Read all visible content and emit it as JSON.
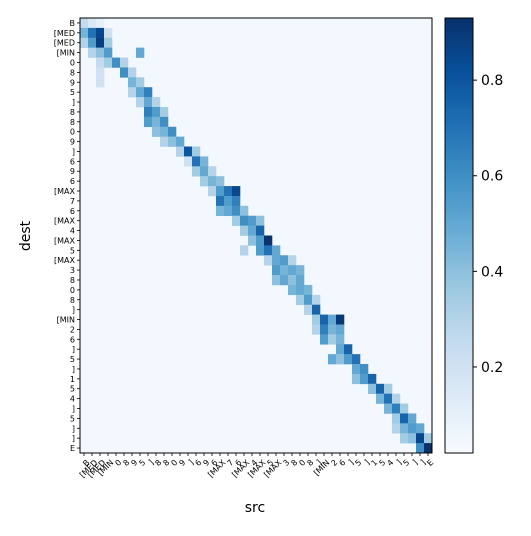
{
  "chart_data": {
    "type": "heatmap",
    "title": "",
    "xlabel": "src",
    "ylabel": "dest",
    "x_tokens": [
      "B",
      "[MED",
      "[MED",
      "[MIN",
      "0",
      "8",
      "9",
      "5",
      "]",
      "8",
      "8",
      "0",
      "9",
      "]",
      "6",
      "9",
      "6",
      "[MAX",
      "7",
      "6",
      "[MAX",
      "4",
      "[MAX",
      "5",
      "[MAX",
      "3",
      "8",
      "0",
      "8",
      "]",
      "[MIN",
      "2",
      "6",
      "]",
      "5",
      "]",
      "1",
      "5",
      "4",
      "]",
      "5",
      "]",
      "]",
      "E"
    ],
    "y_tokens": [
      "B",
      "[MED",
      "[MED",
      "[MIN",
      "0",
      "8",
      "9",
      "5",
      "]",
      "8",
      "8",
      "0",
      "9",
      "]",
      "6",
      "9",
      "6",
      "[MAX",
      "7",
      "6",
      "[MAX",
      "4",
      "[MAX",
      "5",
      "[MAX",
      "3",
      "8",
      "0",
      "8",
      "]",
      "[MIN",
      "2",
      "6",
      "]",
      "5",
      "]",
      "1",
      "5",
      "4",
      "]",
      "5",
      "]",
      "]",
      "E"
    ],
    "colorbar": {
      "colormap": "Blues",
      "range": [
        0.02,
        0.93
      ],
      "ticks": [
        "0.2",
        "0.4",
        "0.6",
        "0.8"
      ],
      "tick_values": [
        0.2,
        0.4,
        0.6,
        0.8
      ]
    },
    "cells": [
      [
        0,
        0,
        0.25
      ],
      [
        0,
        1,
        0.15
      ],
      [
        0,
        2,
        0.1
      ],
      [
        1,
        0,
        0.45
      ],
      [
        1,
        1,
        0.7
      ],
      [
        1,
        2,
        0.85
      ],
      [
        1,
        3,
        0.2
      ],
      [
        2,
        0,
        0.3
      ],
      [
        2,
        1,
        0.55
      ],
      [
        2,
        2,
        0.88
      ],
      [
        2,
        3,
        0.35
      ],
      [
        3,
        1,
        0.3
      ],
      [
        3,
        2,
        0.4
      ],
      [
        3,
        3,
        0.55
      ],
      [
        3,
        7,
        0.5
      ],
      [
        4,
        2,
        0.25
      ],
      [
        4,
        3,
        0.35
      ],
      [
        4,
        4,
        0.6
      ],
      [
        4,
        5,
        0.3
      ],
      [
        5,
        2,
        0.2
      ],
      [
        5,
        5,
        0.6
      ],
      [
        5,
        6,
        0.3
      ],
      [
        6,
        2,
        0.2
      ],
      [
        6,
        6,
        0.45
      ],
      [
        6,
        7,
        0.35
      ],
      [
        7,
        6,
        0.3
      ],
      [
        7,
        7,
        0.5
      ],
      [
        7,
        8,
        0.65
      ],
      [
        8,
        7,
        0.3
      ],
      [
        8,
        8,
        0.5
      ],
      [
        8,
        9,
        0.3
      ],
      [
        9,
        8,
        0.65
      ],
      [
        9,
        9,
        0.55
      ],
      [
        9,
        10,
        0.35
      ],
      [
        10,
        8,
        0.55
      ],
      [
        10,
        9,
        0.45
      ],
      [
        10,
        10,
        0.6
      ],
      [
        11,
        9,
        0.4
      ],
      [
        11,
        10,
        0.45
      ],
      [
        11,
        11,
        0.6
      ],
      [
        12,
        10,
        0.3
      ],
      [
        12,
        11,
        0.4
      ],
      [
        12,
        12,
        0.5
      ],
      [
        13,
        12,
        0.3
      ],
      [
        13,
        13,
        0.8
      ],
      [
        13,
        14,
        0.35
      ],
      [
        14,
        13,
        0.2
      ],
      [
        14,
        14,
        0.7
      ],
      [
        14,
        15,
        0.45
      ],
      [
        15,
        14,
        0.35
      ],
      [
        15,
        15,
        0.5
      ],
      [
        15,
        16,
        0.3
      ],
      [
        16,
        15,
        0.35
      ],
      [
        16,
        16,
        0.45
      ],
      [
        16,
        17,
        0.4
      ],
      [
        17,
        16,
        0.3
      ],
      [
        17,
        17,
        0.55
      ],
      [
        17,
        18,
        0.7
      ],
      [
        17,
        19,
        0.85
      ],
      [
        18,
        17,
        0.7
      ],
      [
        18,
        18,
        0.55
      ],
      [
        18,
        19,
        0.65
      ],
      [
        19,
        17,
        0.45
      ],
      [
        19,
        18,
        0.5
      ],
      [
        19,
        19,
        0.6
      ],
      [
        19,
        20,
        0.4
      ],
      [
        20,
        19,
        0.35
      ],
      [
        20,
        20,
        0.6
      ],
      [
        20,
        21,
        0.55
      ],
      [
        20,
        22,
        0.4
      ],
      [
        21,
        20,
        0.35
      ],
      [
        21,
        21,
        0.5
      ],
      [
        21,
        22,
        0.75
      ],
      [
        22,
        21,
        0.4
      ],
      [
        22,
        22,
        0.55
      ],
      [
        22,
        23,
        0.92
      ],
      [
        23,
        20,
        0.3
      ],
      [
        23,
        22,
        0.55
      ],
      [
        23,
        23,
        0.7
      ],
      [
        23,
        24,
        0.5
      ],
      [
        24,
        23,
        0.3
      ],
      [
        24,
        24,
        0.5
      ],
      [
        24,
        25,
        0.55
      ],
      [
        24,
        26,
        0.3
      ],
      [
        25,
        24,
        0.55
      ],
      [
        25,
        25,
        0.45
      ],
      [
        25,
        26,
        0.5
      ],
      [
        25,
        27,
        0.45
      ],
      [
        26,
        24,
        0.4
      ],
      [
        26,
        25,
        0.5
      ],
      [
        26,
        26,
        0.4
      ],
      [
        26,
        27,
        0.5
      ],
      [
        27,
        26,
        0.45
      ],
      [
        27,
        27,
        0.5
      ],
      [
        27,
        28,
        0.45
      ],
      [
        28,
        27,
        0.35
      ],
      [
        28,
        28,
        0.55
      ],
      [
        28,
        29,
        0.3
      ],
      [
        29,
        28,
        0.3
      ],
      [
        29,
        29,
        0.75
      ],
      [
        30,
        29,
        0.35
      ],
      [
        30,
        30,
        0.75
      ],
      [
        30,
        31,
        0.5
      ],
      [
        30,
        32,
        0.9
      ],
      [
        31,
        29,
        0.3
      ],
      [
        31,
        30,
        0.65
      ],
      [
        31,
        31,
        0.45
      ],
      [
        31,
        32,
        0.5
      ],
      [
        32,
        30,
        0.55
      ],
      [
        32,
        31,
        0.35
      ],
      [
        32,
        32,
        0.45
      ],
      [
        33,
        32,
        0.5
      ],
      [
        33,
        33,
        0.75
      ],
      [
        34,
        31,
        0.5
      ],
      [
        34,
        32,
        0.4
      ],
      [
        34,
        33,
        0.55
      ],
      [
        34,
        34,
        0.7
      ],
      [
        35,
        34,
        0.5
      ],
      [
        35,
        35,
        0.6
      ],
      [
        36,
        34,
        0.4
      ],
      [
        36,
        35,
        0.55
      ],
      [
        36,
        36,
        0.75
      ],
      [
        37,
        36,
        0.4
      ],
      [
        37,
        37,
        0.75
      ],
      [
        37,
        38,
        0.35
      ],
      [
        38,
        37,
        0.45
      ],
      [
        38,
        38,
        0.7
      ],
      [
        38,
        39,
        0.3
      ],
      [
        39,
        38,
        0.45
      ],
      [
        39,
        39,
        0.65
      ],
      [
        39,
        40,
        0.35
      ],
      [
        40,
        39,
        0.35
      ],
      [
        40,
        40,
        0.75
      ],
      [
        40,
        41,
        0.5
      ],
      [
        41,
        39,
        0.3
      ],
      [
        41,
        40,
        0.45
      ],
      [
        41,
        41,
        0.55
      ],
      [
        41,
        42,
        0.5
      ],
      [
        42,
        40,
        0.35
      ],
      [
        42,
        41,
        0.4
      ],
      [
        42,
        42,
        0.85
      ],
      [
        42,
        43,
        0.35
      ],
      [
        43,
        42,
        0.6
      ],
      [
        43,
        43,
        0.93
      ]
    ]
  }
}
